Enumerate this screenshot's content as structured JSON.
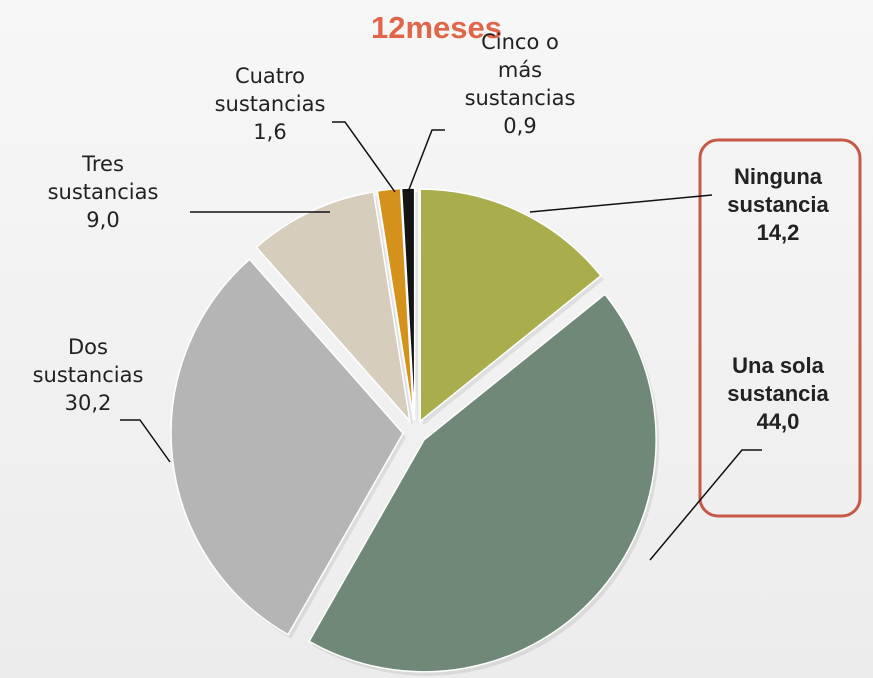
{
  "chart_data": {
    "type": "pie",
    "title": "12meses",
    "categories": [
      "Ninguna sustancia",
      "Una sola sustancia",
      "Dos sustancias",
      "Tres sustancias",
      "Cuatro sustancias",
      "Cinco o más sustancias"
    ],
    "values": [
      14.2,
      44.0,
      30.2,
      9.0,
      1.6,
      0.9
    ],
    "value_labels": [
      "14,2",
      "44,0",
      "30,2",
      "9,0",
      "1,6",
      "0,9"
    ],
    "colors": [
      "#a9ad4c",
      "#6f8878",
      "#b5b5b5",
      "#d7cdbd",
      "#d4921c",
      "#141414"
    ]
  }
}
